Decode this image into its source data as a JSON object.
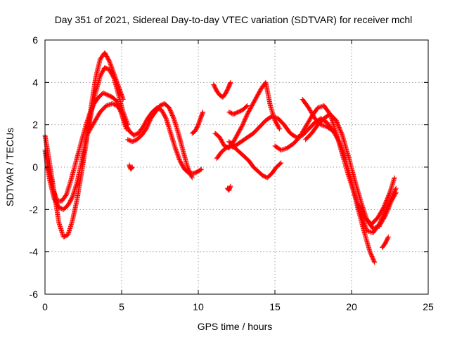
{
  "chart_data": {
    "type": "scatter",
    "title": "Day 351 of 2021, Sidereal Day-to-day VTEC variation (SDTVAR) for receiver mchl",
    "xlabel": "GPS time / hours",
    "ylabel": "SDTVAR / TECUs",
    "xlim": [
      0,
      25
    ],
    "ylim": [
      -6,
      6
    ],
    "xticks": [
      "0",
      "5",
      "10",
      "15",
      "20",
      "25"
    ],
    "yticks": [
      "-6",
      "-4",
      "-2",
      "0",
      "2",
      "4",
      "6"
    ],
    "grid": true,
    "marker": "+",
    "color": "#ff0000",
    "series": [
      {
        "x": [
          0.0,
          0.3,
          0.6,
          0.9,
          1.2,
          1.5,
          1.8,
          2.1,
          2.4,
          2.7,
          3.0,
          3.3,
          3.6,
          3.9,
          4.2,
          4.5,
          4.8,
          5.1
        ],
        "y": [
          1.5,
          0.2,
          -1.2,
          -2.6,
          -3.3,
          -3.2,
          -2.5,
          -1.5,
          -0.2,
          1.2,
          2.8,
          4.2,
          5.1,
          5.4,
          5.0,
          4.4,
          3.8,
          3.2
        ]
      },
      {
        "x": [
          0.0,
          0.3,
          0.6,
          0.9,
          1.2,
          1.5,
          1.8,
          2.1,
          2.4,
          2.7,
          3.0,
          3.3,
          3.6,
          3.9,
          4.2,
          4.5,
          4.8,
          5.1,
          5.4
        ],
        "y": [
          0.8,
          -0.6,
          -1.5,
          -1.9,
          -2.0,
          -1.8,
          -1.4,
          -0.7,
          0.3,
          1.4,
          2.5,
          3.5,
          4.3,
          4.7,
          4.6,
          4.2,
          3.4,
          2.6,
          2.0
        ]
      },
      {
        "x": [
          0.2,
          0.5,
          0.8,
          1.1,
          1.4,
          1.7,
          2.0,
          2.3,
          2.6,
          2.9,
          3.2,
          3.5,
          3.8,
          4.1,
          4.4,
          4.7,
          5.0,
          5.3
        ],
        "y": [
          0.0,
          -1.0,
          -1.6,
          -1.6,
          -1.3,
          -0.6,
          0.2,
          1.0,
          1.8,
          2.5,
          3.0,
          3.3,
          3.5,
          3.4,
          3.3,
          3.1,
          2.5,
          1.8
        ]
      },
      {
        "x": [
          2.8,
          3.2,
          3.6,
          4.0,
          4.4,
          4.7,
          5.0,
          5.2,
          5.5,
          5.8,
          6.1,
          6.4,
          6.7,
          7.0,
          7.3,
          7.6,
          7.9,
          8.2,
          8.5,
          8.8,
          9.1,
          9.4,
          9.7,
          10.0,
          10.2
        ],
        "y": [
          1.6,
          2.1,
          2.6,
          2.9,
          3.0,
          2.9,
          2.6,
          2.1,
          1.7,
          1.5,
          1.6,
          1.9,
          2.3,
          2.6,
          2.8,
          2.7,
          2.3,
          1.6,
          0.9,
          0.3,
          -0.1,
          -0.3,
          -0.3,
          -0.2,
          -0.1
        ]
      },
      {
        "x": [
          5.4,
          5.7,
          6.0,
          6.3,
          6.6,
          6.9,
          7.2,
          7.5,
          7.8,
          8.1,
          8.4,
          8.7,
          9.0,
          9.3,
          9.6
        ],
        "y": [
          1.3,
          1.2,
          1.3,
          1.5,
          1.8,
          2.3,
          2.6,
          2.9,
          3.0,
          2.8,
          2.3,
          1.6,
          0.8,
          0.0,
          -0.5
        ]
      },
      {
        "x": [
          5.5,
          5.6,
          5.7
        ],
        "y": [
          0.1,
          -0.1,
          0.0
        ]
      },
      {
        "x": [
          9.6,
          9.8,
          10.0,
          10.2,
          10.3
        ],
        "y": [
          1.6,
          1.7,
          2.0,
          2.4,
          2.6
        ]
      },
      {
        "x": [
          11.0,
          11.2,
          11.4,
          11.6,
          11.8,
          12.0,
          12.1
        ],
        "y": [
          3.9,
          3.6,
          3.4,
          3.3,
          3.5,
          3.8,
          4.0
        ]
      },
      {
        "x": [
          11.1,
          11.4,
          11.7,
          12.0,
          12.3,
          12.6,
          12.9,
          13.2,
          13.5,
          13.8,
          14.1,
          14.4,
          14.7,
          15.0,
          15.3
        ],
        "y": [
          1.6,
          1.4,
          1.0,
          0.9,
          1.2,
          1.6,
          2.0,
          2.5,
          2.9,
          3.3,
          3.7,
          4.0,
          2.9,
          2.2,
          1.8
        ]
      },
      {
        "x": [
          11.2,
          11.5,
          11.8,
          12.1,
          12.4,
          12.7,
          13.0,
          13.3,
          13.6,
          13.9,
          14.2,
          14.5,
          14.8,
          15.1,
          15.4
        ],
        "y": [
          0.4,
          0.7,
          0.9,
          1.0,
          0.9,
          0.7,
          0.5,
          0.3,
          0.0,
          -0.2,
          -0.4,
          -0.5,
          -0.3,
          0.0,
          0.2
        ]
      },
      {
        "x": [
          12.0,
          12.3,
          12.6,
          12.9,
          13.2
        ],
        "y": [
          2.6,
          2.5,
          2.6,
          2.7,
          2.9
        ]
      },
      {
        "x": [
          11.9,
          12.0,
          12.1
        ],
        "y": [
          -1.0,
          -1.1,
          -0.9
        ]
      },
      {
        "x": [
          12.0,
          12.4,
          12.8,
          13.2,
          13.6,
          14.0,
          14.4,
          14.8,
          15.2,
          15.6,
          16.0,
          16.4,
          16.8,
          17.2,
          17.6,
          18.0,
          18.4,
          18.8
        ],
        "y": [
          1.2,
          1.0,
          1.2,
          1.4,
          1.6,
          1.9,
          2.2,
          2.4,
          2.3,
          2.0,
          1.6,
          1.4,
          1.5,
          1.8,
          2.1,
          2.3,
          2.1,
          1.7
        ]
      },
      {
        "x": [
          15.0,
          15.4,
          15.8,
          16.2,
          16.6,
          17.0,
          17.4,
          17.8,
          18.2,
          18.6,
          19.0,
          19.4,
          19.8,
          20.2,
          20.6,
          21.0,
          21.4,
          21.8,
          22.2,
          22.6,
          22.9
        ],
        "y": [
          1.0,
          0.8,
          0.9,
          1.1,
          1.4,
          1.9,
          2.4,
          2.8,
          2.9,
          2.5,
          1.6,
          0.6,
          -0.4,
          -1.3,
          -2.2,
          -3.0,
          -3.1,
          -2.7,
          -2.1,
          -1.5,
          -1.0
        ]
      },
      {
        "x": [
          16.8,
          17.2,
          17.6,
          18.0,
          18.4,
          18.8,
          19.2,
          19.6,
          20.0,
          20.4,
          20.8,
          21.2,
          21.5
        ],
        "y": [
          3.2,
          2.8,
          2.3,
          2.0,
          1.9,
          1.7,
          1.2,
          0.4,
          -0.7,
          -1.9,
          -3.0,
          -4.0,
          -4.5
        ]
      },
      {
        "x": [
          17.0,
          17.4,
          17.8,
          18.2,
          18.6,
          19.0,
          19.4,
          19.8,
          20.2,
          20.6,
          21.0,
          21.4,
          21.8,
          22.2,
          22.6,
          22.9
        ],
        "y": [
          1.3,
          1.6,
          2.0,
          2.3,
          2.5,
          2.2,
          1.5,
          0.5,
          -0.6,
          -1.6,
          -2.5,
          -2.9,
          -2.8,
          -2.3,
          -1.6,
          -1.2
        ]
      },
      {
        "x": [
          20.5,
          20.9,
          21.3,
          21.7,
          22.1,
          22.5,
          22.8
        ],
        "y": [
          -1.8,
          -2.4,
          -2.7,
          -2.4,
          -1.9,
          -1.2,
          -0.5
        ]
      },
      {
        "x": [
          22.0,
          22.2,
          22.4
        ],
        "y": [
          -3.8,
          -3.6,
          -3.3
        ]
      }
    ]
  }
}
